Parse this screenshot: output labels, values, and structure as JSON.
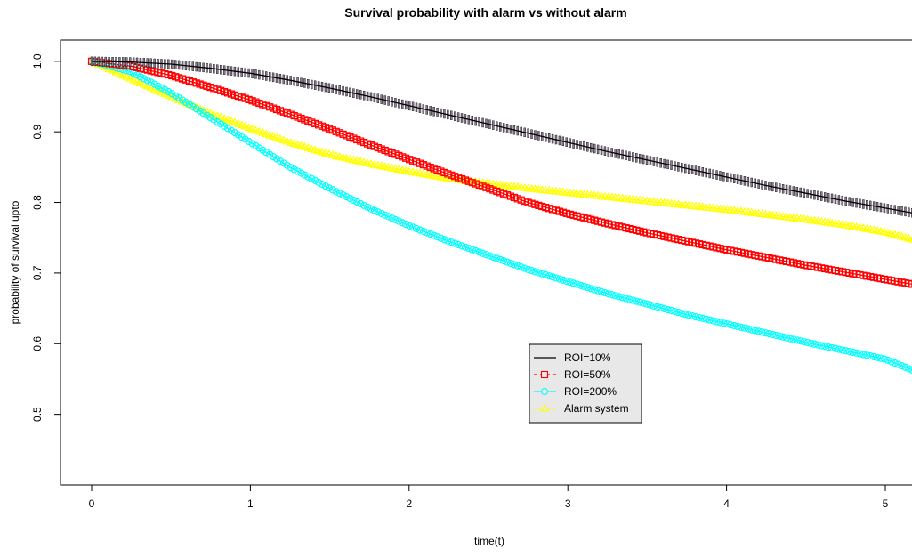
{
  "chart_data": {
    "type": "line",
    "title": "Survival probability with alarm vs without alarm",
    "xlabel": "time(t)",
    "ylabel": "probability of survival upto",
    "xlim": [
      -0.2,
      5.2
    ],
    "ylim": [
      0.4,
      1.03
    ],
    "xticks": [
      0,
      1,
      2,
      3,
      4,
      5
    ],
    "yticks": [
      0.5,
      0.6,
      0.7,
      0.8,
      0.9,
      1.0
    ],
    "ytick_labels": [
      "0.5",
      "0.6",
      "0.7",
      "0.8",
      "0.9",
      "1.0"
    ],
    "grid": false,
    "legend_position": "center-right",
    "x": [
      0,
      0.25,
      0.5,
      0.75,
      1.0,
      1.25,
      1.5,
      1.75,
      2.0,
      2.25,
      2.5,
      2.75,
      3.0,
      3.25,
      3.5,
      3.75,
      4.0,
      4.25,
      4.5,
      4.75,
      5.0,
      5.2
    ],
    "series": [
      {
        "name": "ROI=10%",
        "color": "#000000",
        "marker": "bar",
        "marker_color": "#8a7a90",
        "values": [
          1.0,
          0.999,
          0.996,
          0.99,
          0.983,
          0.973,
          0.962,
          0.95,
          0.937,
          0.924,
          0.911,
          0.898,
          0.885,
          0.872,
          0.86,
          0.848,
          0.836,
          0.824,
          0.813,
          0.802,
          0.792,
          0.784
        ]
      },
      {
        "name": "ROI=50%",
        "color": "#ff0000",
        "marker": "square",
        "values": [
          1.0,
          0.993,
          0.98,
          0.963,
          0.945,
          0.925,
          0.904,
          0.882,
          0.861,
          0.84,
          0.82,
          0.8,
          0.784,
          0.77,
          0.757,
          0.745,
          0.733,
          0.722,
          0.711,
          0.701,
          0.691,
          0.683
        ]
      },
      {
        "name": "ROI=200%",
        "color": "#00ffff",
        "marker": "circle",
        "values": [
          1.0,
          0.985,
          0.955,
          0.92,
          0.885,
          0.85,
          0.82,
          0.792,
          0.767,
          0.745,
          0.725,
          0.705,
          0.688,
          0.671,
          0.656,
          0.641,
          0.628,
          0.615,
          0.602,
          0.59,
          0.578,
          0.56
        ]
      },
      {
        "name": "Alarm system",
        "color": "#ffff00",
        "marker": "triangle",
        "values": [
          1.0,
          0.975,
          0.95,
          0.926,
          0.905,
          0.885,
          0.868,
          0.855,
          0.844,
          0.834,
          0.827,
          0.82,
          0.814,
          0.808,
          0.802,
          0.796,
          0.79,
          0.783,
          0.776,
          0.768,
          0.758,
          0.746
        ]
      }
    ]
  }
}
